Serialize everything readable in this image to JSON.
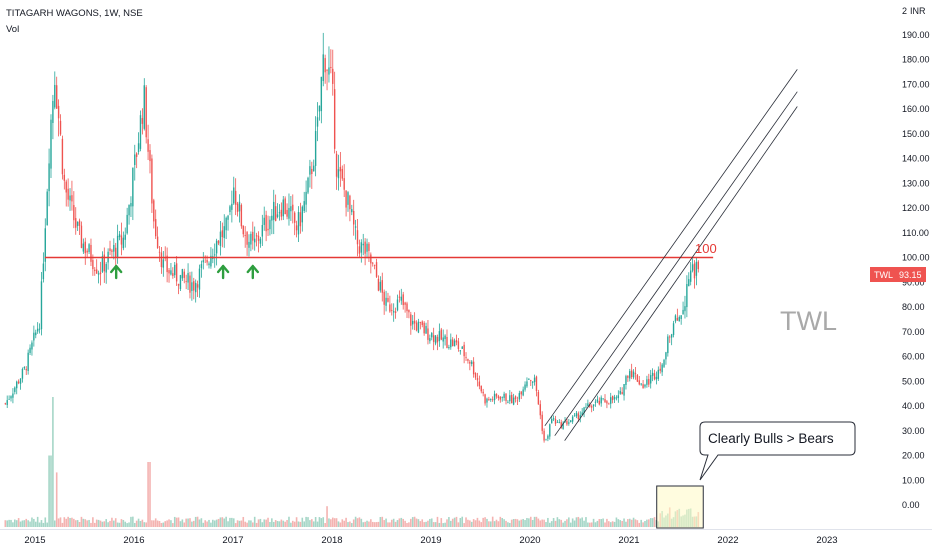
{
  "header": {
    "symbol_line": "TITAGARH WAGONS, 1W, NSE",
    "indicator": "Vol",
    "currency": "INR"
  },
  "colors": {
    "up": "#26a69a",
    "down": "#ef5350",
    "volume_up": "#a5d6c7",
    "volume_down": "#f4b3b1",
    "resistance": "#e53935",
    "channel": "#2a2e39",
    "arrow": "#2e9e3f",
    "price_badge": "#ef5350",
    "watermark": "#a9a9a9"
  },
  "chart_data": {
    "type": "candlestick",
    "y_axis": {
      "ticks": [
        "0.00",
        "10.00",
        "20.00",
        "30.00",
        "40.00",
        "50.00",
        "60.00",
        "70.00",
        "80.00",
        "90.00",
        "100.00",
        "110.00",
        "120.00",
        "130.00",
        "140.00",
        "150.00",
        "160.00",
        "170.00",
        "180.00",
        "190.00"
      ],
      "top_label": "2",
      "range": [
        -5,
        200
      ]
    },
    "x_axis": {
      "ticks": [
        "2015",
        "2016",
        "2017",
        "2018",
        "2019",
        "2020",
        "2021",
        "2022",
        "2023"
      ]
    },
    "current_price": {
      "label": "TWL",
      "value": "93.15"
    },
    "resistance": {
      "value": 100,
      "label": "100",
      "from": "2015.1",
      "to": "2021.85"
    },
    "support_arrows": [
      2015.82,
      2016.9,
      2017.2
    ],
    "channel": {
      "lines": [
        {
          "from": [
            2020.15,
            32
          ],
          "to": [
            2022.7,
            176
          ]
        },
        {
          "from": [
            2020.25,
            28
          ],
          "to": [
            2022.7,
            167
          ]
        },
        {
          "from": [
            2020.35,
            26
          ],
          "to": [
            2022.7,
            161
          ]
        }
      ]
    },
    "price_path": [
      [
        2014.7,
        41
      ],
      [
        2014.9,
        55
      ],
      [
        2015.05,
        75
      ],
      [
        2015.15,
        150
      ],
      [
        2015.2,
        175
      ],
      [
        2015.3,
        128
      ],
      [
        2015.45,
        108
      ],
      [
        2015.65,
        95
      ],
      [
        2015.8,
        103
      ],
      [
        2015.9,
        108
      ],
      [
        2016.0,
        135
      ],
      [
        2016.1,
        165
      ],
      [
        2016.2,
        115
      ],
      [
        2016.3,
        96
      ],
      [
        2016.45,
        92
      ],
      [
        2016.6,
        89
      ],
      [
        2016.7,
        96
      ],
      [
        2016.85,
        108
      ],
      [
        2016.95,
        112
      ],
      [
        2017.0,
        130
      ],
      [
        2017.1,
        112
      ],
      [
        2017.2,
        104
      ],
      [
        2017.35,
        115
      ],
      [
        2017.5,
        122
      ],
      [
        2017.65,
        112
      ],
      [
        2017.75,
        126
      ],
      [
        2017.85,
        150
      ],
      [
        2017.92,
        184
      ],
      [
        2018.0,
        168
      ],
      [
        2018.05,
        135
      ],
      [
        2018.15,
        124
      ],
      [
        2018.25,
        106
      ],
      [
        2018.35,
        102
      ],
      [
        2018.45,
        92
      ],
      [
        2018.55,
        80
      ],
      [
        2018.7,
        82
      ],
      [
        2018.8,
        74
      ],
      [
        2018.95,
        70
      ],
      [
        2019.1,
        67
      ],
      [
        2019.25,
        65
      ],
      [
        2019.4,
        58
      ],
      [
        2019.55,
        42
      ],
      [
        2019.7,
        44
      ],
      [
        2019.85,
        42
      ],
      [
        2019.98,
        52
      ],
      [
        2020.05,
        50
      ],
      [
        2020.15,
        24
      ],
      [
        2020.22,
        35
      ],
      [
        2020.3,
        32
      ],
      [
        2020.45,
        35
      ],
      [
        2020.6,
        40
      ],
      [
        2020.75,
        42
      ],
      [
        2020.9,
        43
      ],
      [
        2021.0,
        55
      ],
      [
        2021.15,
        48
      ],
      [
        2021.3,
        55
      ],
      [
        2021.45,
        72
      ],
      [
        2021.55,
        80
      ],
      [
        2021.6,
        93
      ],
      [
        2021.65,
        96
      ],
      [
        2021.7,
        93
      ]
    ],
    "volume_spikes": [
      {
        "x": 2015.18,
        "v": 1.0
      },
      {
        "x": 2015.15,
        "v": 0.55
      },
      {
        "x": 2015.22,
        "v": 0.42
      },
      {
        "x": 2016.15,
        "v": 0.5
      },
      {
        "x": 2017.95,
        "v": 0.16
      },
      {
        "x": 2021.6,
        "v": 0.25
      }
    ],
    "volume_highlight": {
      "from": 2021.28,
      "to": 2021.75
    }
  },
  "annotations": {
    "callout": "Clearly Bulls > Bears",
    "watermark": "TWL"
  }
}
